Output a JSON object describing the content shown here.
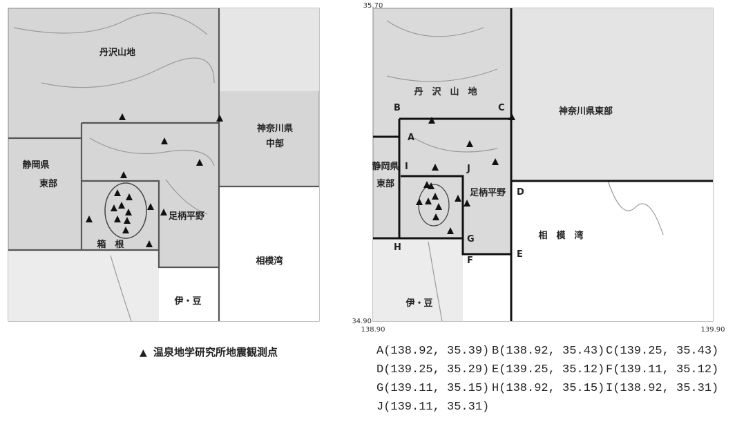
{
  "left_map": {
    "regions": [
      "丹沢山地",
      "神奈川県",
      "中部",
      "静岡県",
      "東部",
      "足柄平野",
      "箱　根",
      "相模湾",
      "伊・豆"
    ]
  },
  "legend": {
    "symbol": "▲",
    "text": "温泉地学研究所地震観測点"
  },
  "right_map": {
    "corners": [
      "35.70",
      "34.90",
      "138.90",
      "139.90"
    ],
    "regions": [
      "丹　沢　山　地",
      "神奈川県東部",
      "静岡県",
      "東部",
      "足柄平野",
      "相　模　湾",
      "伊・豆"
    ],
    "points": [
      "A",
      "B",
      "C",
      "D",
      "E",
      "F",
      "G",
      "H",
      "I",
      "J"
    ]
  },
  "coordinates": [
    "A(138.92, 35.39)",
    "B(138.92, 35.43)",
    "C(139.25, 35.43)",
    "D(139.25, 35.29)",
    "E(139.25, 35.12)",
    "F(139.11, 35.12)",
    "G(139.11, 35.15)",
    "H(138.92, 35.15)",
    "I(138.92, 35.31)",
    "J(139.11, 35.31)"
  ]
}
